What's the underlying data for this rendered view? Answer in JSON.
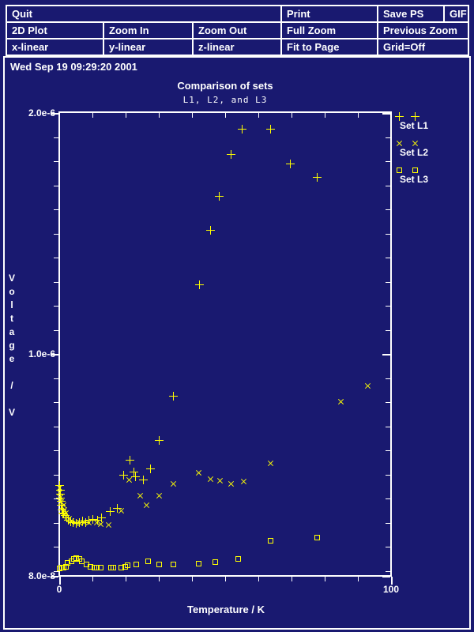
{
  "menu": {
    "rows": [
      [
        {
          "label": "Quit"
        },
        {
          "label": "Print"
        },
        {
          "label": "Save PS"
        },
        {
          "label": "GIF"
        }
      ],
      [
        {
          "label": "2D Plot"
        },
        {
          "label": "Zoom In"
        },
        {
          "label": "Zoom Out"
        },
        {
          "label": "Full Zoom"
        },
        {
          "label": "Previous Zoom"
        }
      ],
      [
        {
          "label": "x-linear"
        },
        {
          "label": "y-linear"
        },
        {
          "label": "z-linear"
        },
        {
          "label": "Fit to Page"
        },
        {
          "label": "Grid=Off"
        }
      ]
    ]
  },
  "plot_panel": {
    "timestamp": "Wed Sep 19 09:29:20 2001",
    "title": "Comparison of sets",
    "subtitle": "L1, L2, and L3",
    "xlabel": "Temperature / K",
    "ylabel": "Voltage / V",
    "x_tick_labels": [
      "0",
      "100"
    ],
    "y_tick_labels": [
      "2.0e-6",
      "1.0e-6",
      "8.0e-8"
    ]
  },
  "legend": {
    "items": [
      {
        "symbol": "plus-icon",
        "label": "Set L1"
      },
      {
        "symbol": "cross-icon",
        "label": "Set L2"
      },
      {
        "symbol": "square-icon",
        "label": "Set L3"
      }
    ]
  },
  "colors": {
    "background": "#191970",
    "foreground": "#ffffff",
    "data_points": "#ffff00"
  },
  "chart_data": {
    "type": "scatter",
    "title": "Comparison of sets",
    "subtitle": "L1, L2, and L3",
    "xlabel": "Temperature / K",
    "ylabel": "Voltage / V",
    "xlim": [
      0,
      100
    ],
    "ylim": [
      8e-08,
      2e-06
    ],
    "x_major_ticks": [
      0,
      100
    ],
    "x_minor_tick_step": 10,
    "y_major_ticks": [
      2e-06,
      1e-06,
      8e-08
    ],
    "y_minor_tick_step": 1e-07,
    "grid": "off",
    "legend_position": "outside-right",
    "series": [
      {
        "name": "Set L1",
        "marker": "plus",
        "points": [
          [
            0.2,
            4.55e-07
          ],
          [
            0.25,
            4.35e-07
          ],
          [
            0.3,
            4.18e-07
          ],
          [
            0.4,
            4.02e-07
          ],
          [
            0.5,
            3.88e-07
          ],
          [
            0.65,
            3.72e-07
          ],
          [
            0.8,
            3.55e-07
          ],
          [
            1.0,
            3.42e-07
          ],
          [
            1.3,
            3.38e-07
          ],
          [
            1.7,
            3.3e-07
          ],
          [
            2.2,
            3.22e-07
          ],
          [
            2.8,
            3.12e-07
          ],
          [
            3.4,
            3.05e-07
          ],
          [
            4.2,
            3e-07
          ],
          [
            5.0,
            2.97e-07
          ],
          [
            6.0,
            3.02e-07
          ],
          [
            7.0,
            3.07e-07
          ],
          [
            8.0,
            3.02e-07
          ],
          [
            9.0,
            3.1e-07
          ],
          [
            10.2,
            3.15e-07
          ],
          [
            11.5,
            3.1e-07
          ],
          [
            12.8,
            3.22e-07
          ],
          [
            15.3,
            3.48e-07
          ],
          [
            17.4,
            3.6e-07
          ],
          [
            19.3,
            4.99e-07
          ],
          [
            21.4,
            5.61e-07
          ],
          [
            22.6,
            5.11e-07
          ],
          [
            23.0,
            4.9e-07
          ],
          [
            25.3,
            4.79e-07
          ],
          [
            27.4,
            5.23e-07
          ],
          [
            30.0,
            6.41e-07
          ],
          [
            34.3,
            8.25e-07
          ],
          [
            42.3,
            1.288e-06
          ],
          [
            45.6,
            1.514e-06
          ],
          [
            48.3,
            1.653e-06
          ],
          [
            51.7,
            1.827e-06
          ],
          [
            55.0,
            1.934e-06
          ],
          [
            63.6,
            1.932e-06
          ],
          [
            69.6,
            1.789e-06
          ],
          [
            77.8,
            1.734e-06
          ]
        ]
      },
      {
        "name": "Set L2",
        "marker": "cross",
        "points": [
          [
            0.15,
            4.45e-07
          ],
          [
            0.2,
            4.25e-07
          ],
          [
            0.3,
            4.05e-07
          ],
          [
            0.5,
            3.85e-07
          ],
          [
            0.8,
            3.68e-07
          ],
          [
            1.2,
            3.72e-07
          ],
          [
            1.6,
            3.52e-07
          ],
          [
            2.0,
            3.42e-07
          ],
          [
            2.9,
            3.16e-07
          ],
          [
            3.8,
            3.08e-07
          ],
          [
            4.8,
            3e-07
          ],
          [
            6.2,
            2.97e-07
          ],
          [
            7.5,
            3.02e-07
          ],
          [
            9.0,
            3e-07
          ],
          [
            11.2,
            3e-07
          ],
          [
            12.4,
            2.93e-07
          ],
          [
            14.8,
            2.9e-07
          ],
          [
            18.8,
            3.5e-07
          ],
          [
            21.0,
            4.78e-07
          ],
          [
            24.3,
            4.11e-07
          ],
          [
            26.4,
            3.74e-07
          ],
          [
            30.1,
            4.14e-07
          ],
          [
            34.5,
            4.62e-07
          ],
          [
            42.1,
            5.06e-07
          ],
          [
            45.6,
            4.83e-07
          ],
          [
            48.5,
            4.76e-07
          ],
          [
            51.7,
            4.63e-07
          ],
          [
            55.6,
            4.73e-07
          ],
          [
            63.6,
            5.48e-07
          ],
          [
            84.8,
            8.04e-07
          ],
          [
            93.0,
            8.67e-07
          ]
        ]
      },
      {
        "name": "Set L3",
        "marker": "square",
        "points": [
          [
            0.2,
            1.12e-07
          ],
          [
            0.8,
            1.14e-07
          ],
          [
            1.4,
            1.16e-07
          ],
          [
            2.1,
            1.19e-07
          ],
          [
            2.6,
            1.33e-07
          ],
          [
            3.6,
            1.42e-07
          ],
          [
            4.5,
            1.49e-07
          ],
          [
            5.0,
            1.55e-07
          ],
          [
            6.0,
            1.49e-07
          ],
          [
            6.9,
            1.39e-07
          ],
          [
            8.3,
            1.26e-07
          ],
          [
            9.5,
            1.19e-07
          ],
          [
            10.5,
            1.16e-07
          ],
          [
            11.4,
            1.13e-07
          ],
          [
            12.4,
            1.13e-07
          ],
          [
            15.5,
            1.16e-07
          ],
          [
            16.2,
            1.13e-07
          ],
          [
            18.6,
            1.16e-07
          ],
          [
            19.8,
            1.19e-07
          ],
          [
            20.7,
            1.23e-07
          ],
          [
            23.1,
            1.29e-07
          ],
          [
            26.9,
            1.42e-07
          ],
          [
            30.0,
            1.26e-07
          ],
          [
            34.3,
            1.26e-07
          ],
          [
            42.1,
            1.32e-07
          ],
          [
            47.1,
            1.36e-07
          ],
          [
            54.0,
            1.52e-07
          ],
          [
            63.6,
            2.27e-07
          ],
          [
            77.7,
            2.4e-07
          ]
        ]
      }
    ]
  }
}
